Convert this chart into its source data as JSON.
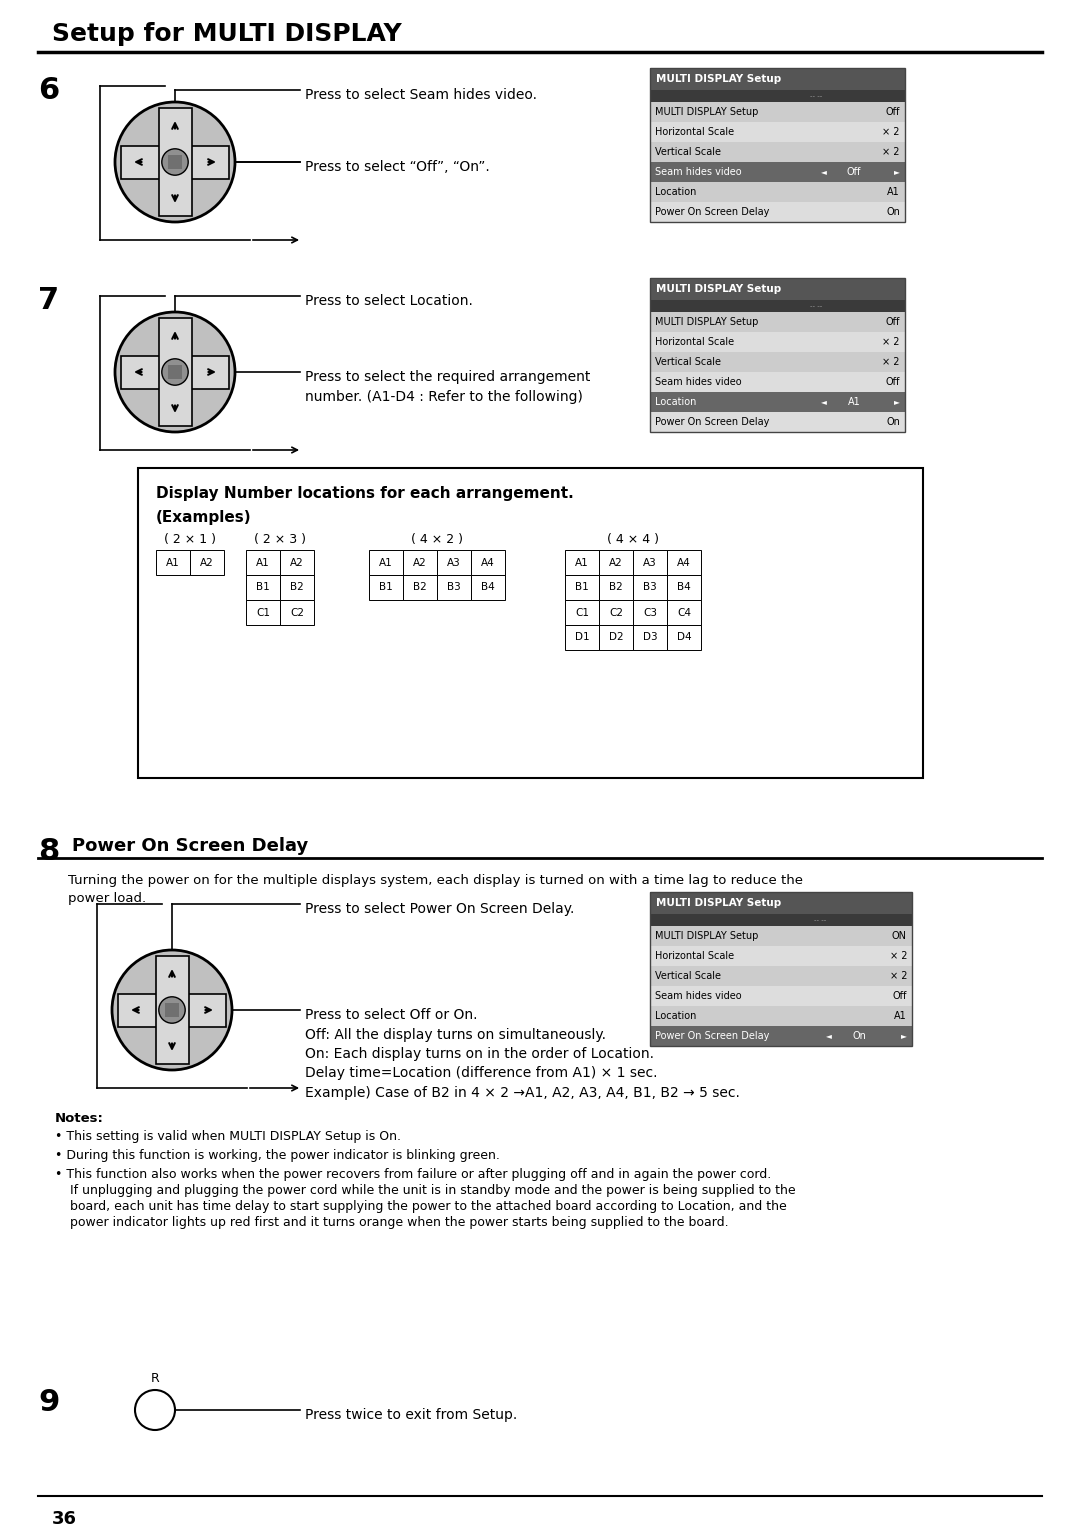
{
  "title": "Setup for MULTI DISPLAY",
  "bg_color": "#ffffff",
  "page_num": "36",
  "section6": {
    "num": "6",
    "arrow1_text": "Press to select Seam hides video.",
    "arrow2_text": "Press to select “Off”, “On”.",
    "menu": {
      "title": "MULTI DISPLAY Setup",
      "rows": [
        [
          "MULTI DISPLAY Setup",
          "Off"
        ],
        [
          "Horizontal Scale",
          "× 2"
        ],
        [
          "Vertical Scale",
          "× 2"
        ],
        [
          "Seam hides video",
          "Off"
        ],
        [
          "Location",
          "A1"
        ],
        [
          "Power On Screen Delay",
          "On"
        ]
      ],
      "highlight_row": 3
    }
  },
  "section7": {
    "num": "7",
    "arrow1_text": "Press to select Location.",
    "arrow2_text": "Press to select the required arrangement\nnumber. (A1-D4 : Refer to the following)",
    "menu": {
      "title": "MULTI DISPLAY Setup",
      "rows": [
        [
          "MULTI DISPLAY Setup",
          "Off"
        ],
        [
          "Horizontal Scale",
          "× 2"
        ],
        [
          "Vertical Scale",
          "× 2"
        ],
        [
          "Seam hides video",
          "Off"
        ],
        [
          "Location",
          "A1"
        ],
        [
          "Power On Screen Delay",
          "On"
        ]
      ],
      "highlight_row": 4
    }
  },
  "examples_box": {
    "title_bold": "Display Number locations for each arrangement.",
    "title2": "(Examples)",
    "arrangements": [
      {
        "label": "( 2 × 1 )",
        "grid": [
          [
            "A1",
            "A2"
          ]
        ]
      },
      {
        "label": "( 2 × 3 )",
        "grid": [
          [
            "A1",
            "A2"
          ],
          [
            "B1",
            "B2"
          ],
          [
            "C1",
            "C2"
          ]
        ]
      },
      {
        "label": "( 4 × 2 )",
        "grid": [
          [
            "A1",
            "A2",
            "A3",
            "A4"
          ],
          [
            "B1",
            "B2",
            "B3",
            "B4"
          ]
        ]
      },
      {
        "label": "( 4 × 4 )",
        "grid": [
          [
            "A1",
            "A2",
            "A3",
            "A4"
          ],
          [
            "B1",
            "B2",
            "B3",
            "B4"
          ],
          [
            "C1",
            "C2",
            "C3",
            "C4"
          ],
          [
            "D1",
            "D2",
            "D3",
            "D4"
          ]
        ]
      }
    ]
  },
  "section8": {
    "num": "8",
    "heading": "Power On Screen Delay",
    "desc": "Turning the power on for the multiple displays system, each display is turned on with a time lag to reduce the\npower load.",
    "arrow1_text": "Press to select Power On Screen Delay.",
    "arrow2_text": "Press to select Off or On.\nOff: All the display turns on simultaneously.\nOn: Each display turns on in the order of Location.\nDelay time=Location (difference from A1) × 1 sec.\nExample) Case of B2 in 4 × 2 →A1, A2, A3, A4, B1, B2 → 5 sec.",
    "menu": {
      "title": "MULTI DISPLAY Setup",
      "rows": [
        [
          "MULTI DISPLAY Setup",
          "ON"
        ],
        [
          "Horizontal Scale",
          "× 2"
        ],
        [
          "Vertical Scale",
          "× 2"
        ],
        [
          "Seam hides video",
          "Off"
        ],
        [
          "Location",
          "A1"
        ],
        [
          "Power On Screen Delay",
          "On"
        ]
      ],
      "highlight_row": 5
    }
  },
  "notes": [
    "This setting is valid when MULTI DISPLAY Setup is On.",
    "During this function is working, the power indicator is blinking green.",
    "This function also works when the power recovers from failure or after plugging off and in again the power cord.\n  If unplugging and plugging the power cord while the unit is in standby mode and the power is being supplied to the\n  board, each unit has time delay to start supplying the power to the attached board according to Location, and the\n  power indicator lights up red first and it turns orange when the power starts being supplied to the board."
  ],
  "section9": {
    "num": "9",
    "text": "Press twice to exit from Setup.",
    "r_label": "R"
  }
}
